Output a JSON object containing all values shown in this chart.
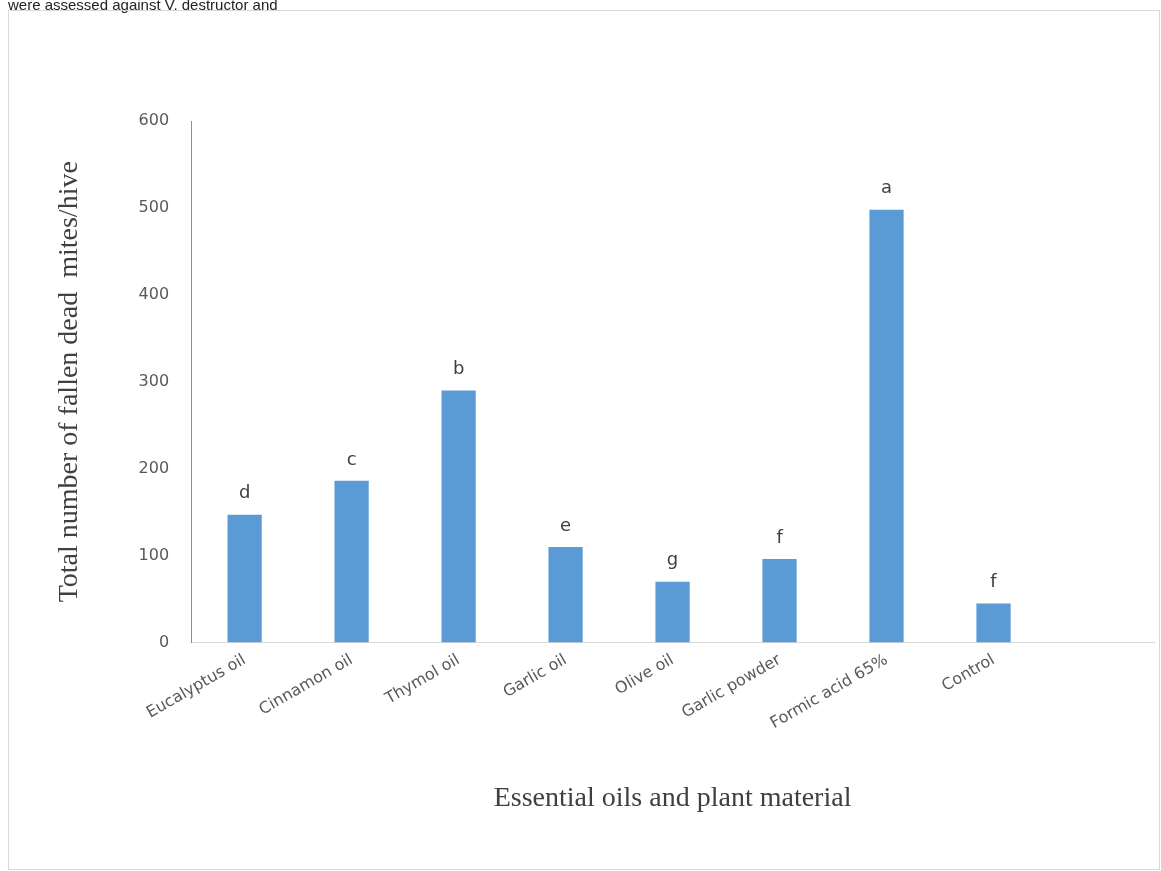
{
  "chart_data": {
    "type": "bar",
    "xlabel": "Essential oils and plant material",
    "ylabel": "Total number of fallen dead  mites/hive",
    "categories": [
      "Eucalyptus oil",
      "Cinnamon oil",
      "Thymol oil",
      "Garlic oil",
      "Olive oil",
      "Garlic powder",
      "Formic acid 65%",
      "Control",
      null
    ],
    "values": [
      147,
      186,
      290,
      110,
      70,
      96,
      498,
      45,
      null
    ],
    "value_labels": [
      "d",
      "c",
      "b",
      "e",
      "g",
      "f",
      "a",
      "f",
      null
    ],
    "color": "#5b9bd5",
    "ylim": [
      0,
      600
    ],
    "yticks": [
      0,
      100,
      200,
      300,
      400,
      500,
      600
    ],
    "grid": false,
    "legend": false,
    "annotations": [
      "were assessed against V. destructor and"
    ]
  }
}
